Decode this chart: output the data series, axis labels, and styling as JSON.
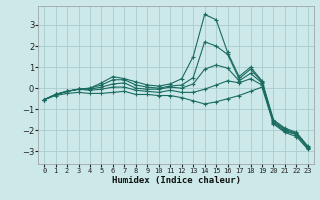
{
  "background_color": "#cce8e8",
  "grid_color": "#aacccc",
  "line_color": "#1a6b60",
  "xlabel": "Humidex (Indice chaleur)",
  "xlim": [
    -0.5,
    23.5
  ],
  "ylim": [
    -3.6,
    3.9
  ],
  "yticks": [
    -3,
    -2,
    -1,
    0,
    1,
    2,
    3
  ],
  "xticks": [
    0,
    1,
    2,
    3,
    4,
    5,
    6,
    7,
    8,
    9,
    10,
    11,
    12,
    13,
    14,
    15,
    16,
    17,
    18,
    19,
    20,
    21,
    22,
    23
  ],
  "series": [
    {
      "x": [
        0,
        1,
        2,
        3,
        4,
        5,
        6,
        7,
        8,
        9,
        10,
        11,
        12,
        13,
        14,
        15,
        16,
        17,
        18,
        19,
        20,
        21,
        22,
        23
      ],
      "y": [
        -0.55,
        -0.3,
        -0.15,
        -0.05,
        0.0,
        0.25,
        0.55,
        0.45,
        0.3,
        0.15,
        0.1,
        0.2,
        0.45,
        1.5,
        3.5,
        3.25,
        1.7,
        0.55,
        1.0,
        0.35,
        -1.5,
        -1.9,
        -2.1,
        -2.75
      ]
    },
    {
      "x": [
        0,
        1,
        2,
        3,
        4,
        5,
        6,
        7,
        8,
        9,
        10,
        11,
        12,
        13,
        14,
        15,
        16,
        17,
        18,
        19,
        20,
        21,
        22,
        23
      ],
      "y": [
        -0.55,
        -0.3,
        -0.15,
        -0.05,
        0.0,
        0.15,
        0.4,
        0.4,
        0.15,
        0.05,
        0.0,
        0.1,
        0.15,
        0.5,
        2.2,
        2.0,
        1.6,
        0.45,
        0.9,
        0.3,
        -1.55,
        -1.95,
        -2.15,
        -2.8
      ]
    },
    {
      "x": [
        0,
        1,
        2,
        3,
        4,
        5,
        6,
        7,
        8,
        9,
        10,
        11,
        12,
        13,
        14,
        15,
        16,
        17,
        18,
        19,
        20,
        21,
        22,
        23
      ],
      "y": [
        -0.55,
        -0.3,
        -0.15,
        -0.05,
        -0.05,
        0.05,
        0.2,
        0.25,
        0.0,
        -0.05,
        -0.05,
        0.05,
        0.0,
        0.2,
        0.9,
        1.1,
        0.95,
        0.35,
        0.7,
        0.25,
        -1.6,
        -2.0,
        -2.2,
        -2.82
      ]
    },
    {
      "x": [
        0,
        1,
        2,
        3,
        4,
        5,
        6,
        7,
        8,
        9,
        10,
        11,
        12,
        13,
        14,
        15,
        16,
        17,
        18,
        19,
        20,
        21,
        22,
        23
      ],
      "y": [
        -0.55,
        -0.3,
        -0.15,
        -0.05,
        -0.1,
        -0.05,
        0.05,
        0.05,
        -0.1,
        -0.15,
        -0.2,
        -0.1,
        -0.2,
        -0.2,
        -0.05,
        0.15,
        0.35,
        0.25,
        0.45,
        0.15,
        -1.65,
        -2.05,
        -2.2,
        -2.85
      ]
    },
    {
      "x": [
        0,
        1,
        2,
        3,
        4,
        5,
        6,
        7,
        8,
        9,
        10,
        11,
        12,
        13,
        14,
        15,
        16,
        17,
        18,
        19,
        20,
        21,
        22,
        23
      ],
      "y": [
        -0.55,
        -0.35,
        -0.25,
        -0.2,
        -0.25,
        -0.25,
        -0.2,
        -0.15,
        -0.3,
        -0.3,
        -0.35,
        -0.35,
        -0.45,
        -0.6,
        -0.75,
        -0.65,
        -0.5,
        -0.35,
        -0.15,
        0.05,
        -1.7,
        -2.1,
        -2.3,
        -2.9
      ]
    }
  ]
}
